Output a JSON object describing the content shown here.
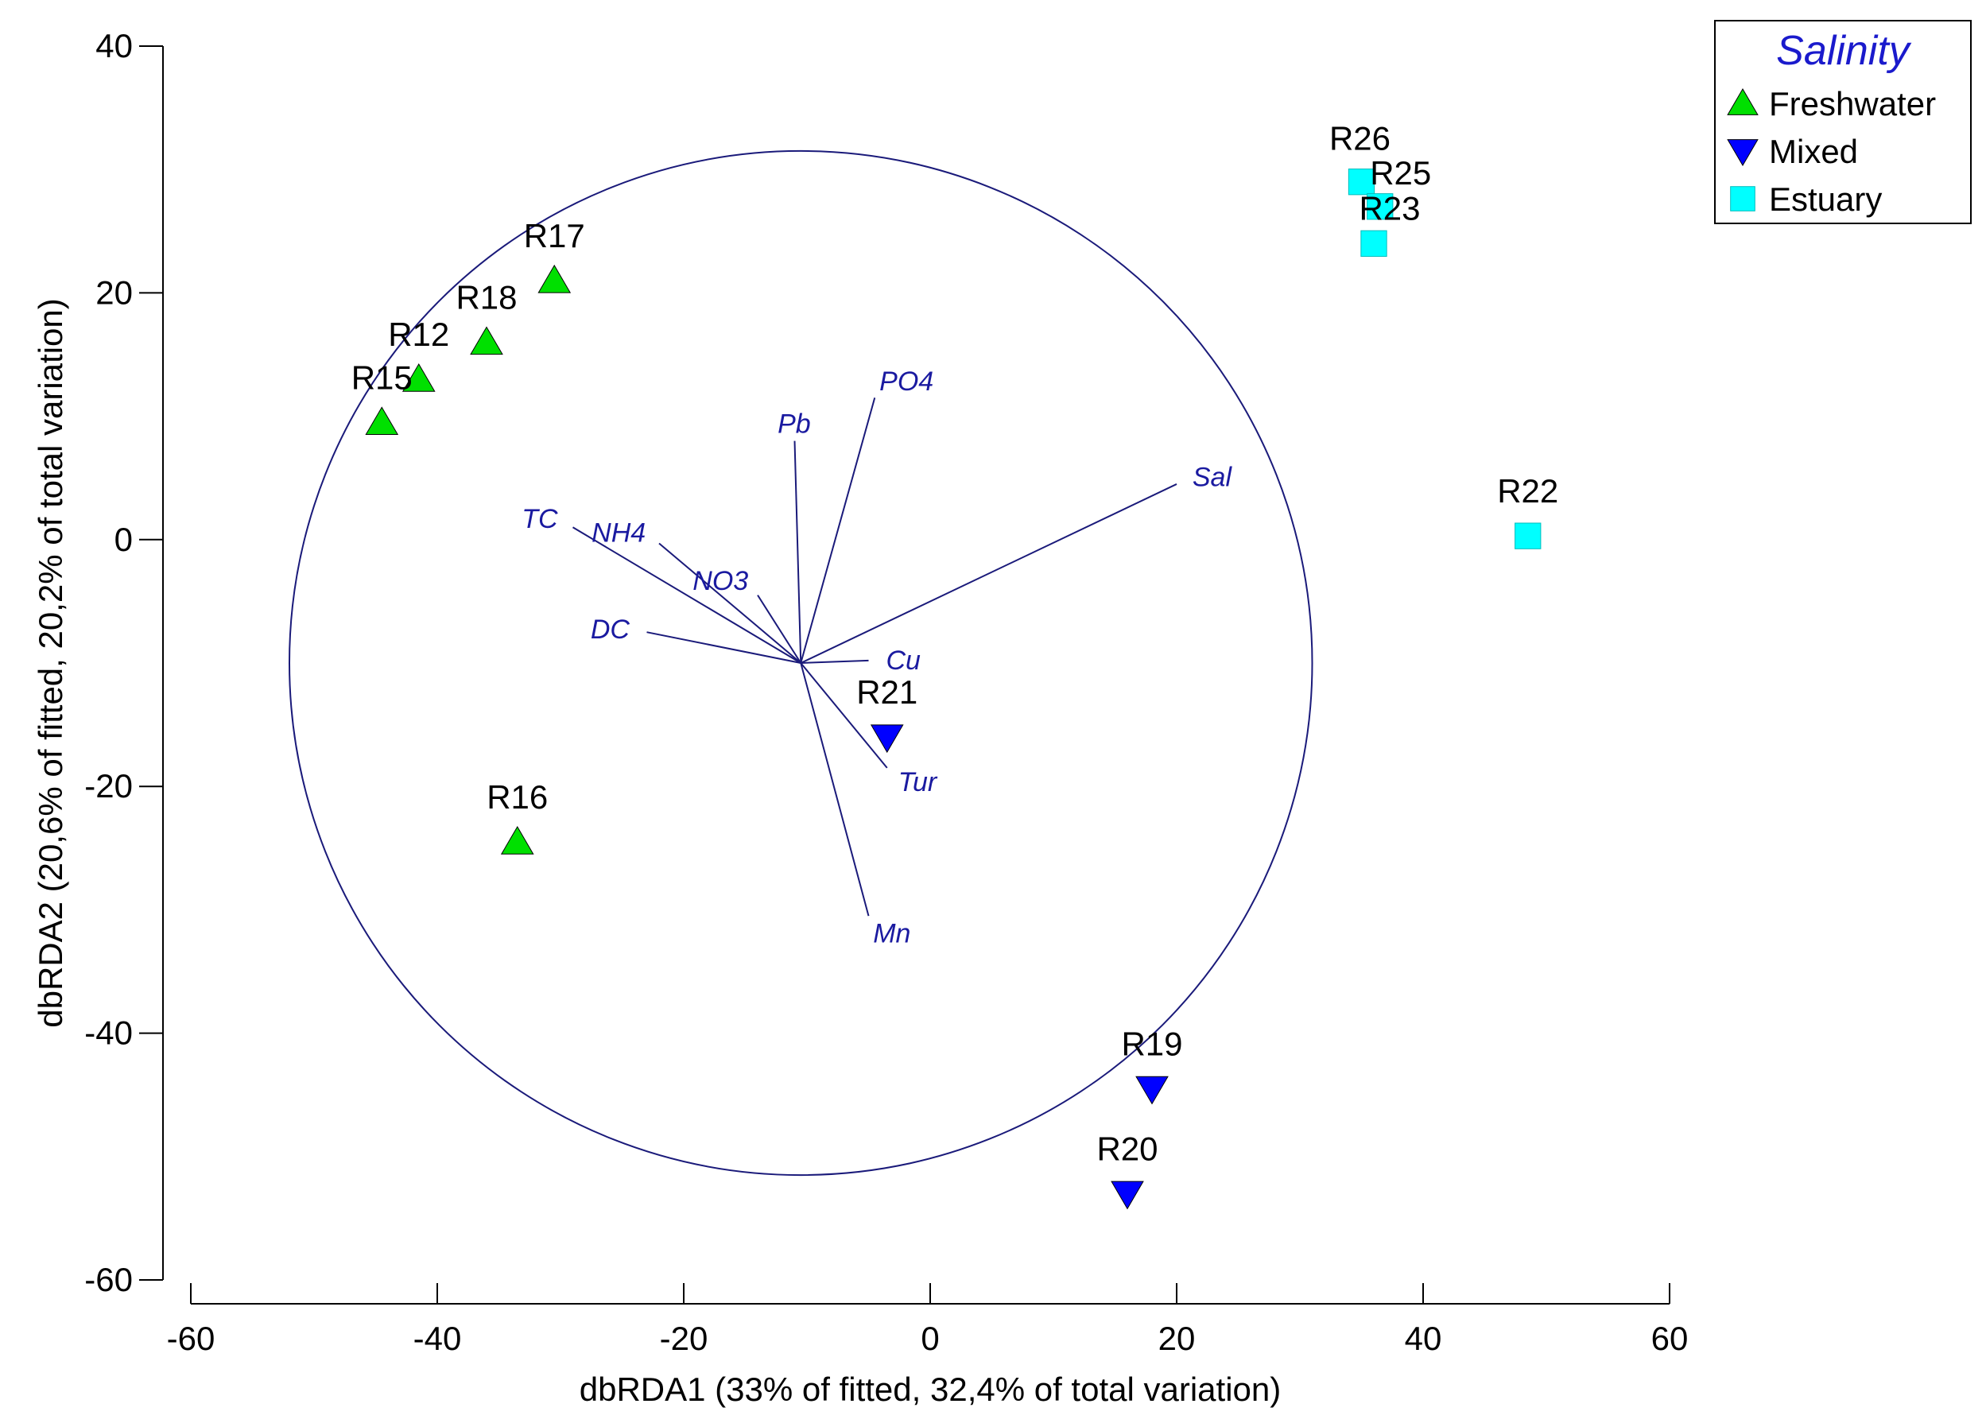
{
  "chart_data": {
    "type": "scatter",
    "xlabel": "dbRDA1 (33% of fitted, 32,4% of total variation)",
    "ylabel": "dbRDA2 (20,6% of fitted, 20,2% of total variation)",
    "xlim": [
      -60,
      60
    ],
    "ylim": [
      -60,
      40
    ],
    "xticks": [
      -60,
      -40,
      -20,
      0,
      20,
      40,
      60
    ],
    "yticks": [
      -60,
      -40,
      -20,
      0,
      20,
      40
    ],
    "grid": false,
    "legend": {
      "title": "Salinity",
      "position": "top-right",
      "entries": [
        {
          "name": "Freshwater",
          "marker": "triangle-up",
          "color": "#00e000"
        },
        {
          "name": "Mixed",
          "marker": "triangle-down",
          "color": "#0000ff"
        },
        {
          "name": "Estuary",
          "marker": "square",
          "color": "#00ffff"
        }
      ]
    },
    "series": [
      {
        "name": "Freshwater",
        "points": [
          {
            "label": "R17",
            "x": -30.5,
            "y": 21
          },
          {
            "label": "R18",
            "x": -36,
            "y": 16
          },
          {
            "label": "R12",
            "x": -41.5,
            "y": 13
          },
          {
            "label": "R15",
            "x": -44.5,
            "y": 9.5
          },
          {
            "label": "R16",
            "x": -33.5,
            "y": -24.5
          }
        ]
      },
      {
        "name": "Mixed",
        "points": [
          {
            "label": "R21",
            "x": -3.5,
            "y": -16
          },
          {
            "label": "R19",
            "x": 18,
            "y": -44.5
          },
          {
            "label": "R20",
            "x": 16,
            "y": -53
          }
        ]
      },
      {
        "name": "Estuary",
        "points": [
          {
            "label": "R26",
            "x": 35,
            "y": 29
          },
          {
            "label": "R25",
            "x": 36.5,
            "y": 27
          },
          {
            "label": "R23",
            "x": 36,
            "y": 24
          },
          {
            "label": "R22",
            "x": 48.5,
            "y": 0.3
          }
        ]
      }
    ],
    "vector_origin": [
      -10.5,
      -10
    ],
    "vectors": [
      {
        "name": "PO4",
        "x": -4.5,
        "y": 11.5
      },
      {
        "name": "Pb",
        "x": -11,
        "y": 8
      },
      {
        "name": "Sal",
        "x": 20,
        "y": 4.5
      },
      {
        "name": "TC",
        "x": -29,
        "y": 1
      },
      {
        "name": "NH4",
        "x": -22,
        "y": -0.3
      },
      {
        "name": "NO3",
        "x": -14,
        "y": -4.5
      },
      {
        "name": "DC",
        "x": -23,
        "y": -7.5
      },
      {
        "name": "Cu",
        "x": -5,
        "y": -9.8
      },
      {
        "name": "Tur",
        "x": -3.5,
        "y": -18.5
      },
      {
        "name": "Mn",
        "x": -5,
        "y": -30.5
      }
    ],
    "circle": {
      "center": [
        -10.5,
        -10
      ],
      "radius": 41.5
    },
    "colors": {
      "axis": "#000000",
      "vector": "#1a1a7a",
      "vector_label": "#1a1aa0",
      "circle": "#1a1a7a",
      "legend_title": "#1a1acc"
    }
  }
}
